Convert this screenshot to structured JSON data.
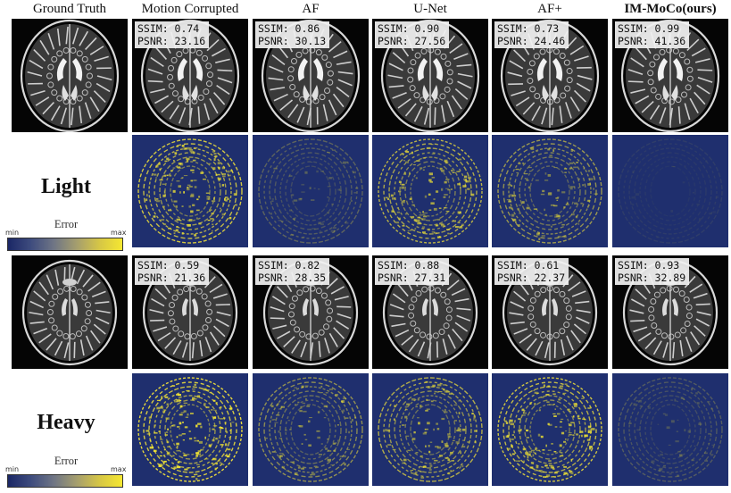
{
  "columns": [
    {
      "label": "Ground Truth",
      "bold": false
    },
    {
      "label": "Motion Corrupted",
      "bold": false
    },
    {
      "label": "AF",
      "bold": false
    },
    {
      "label": "U-Net",
      "bold": false
    },
    {
      "label": "AF+",
      "bold": false
    },
    {
      "label": "IM-MoCo(ours)",
      "bold": true
    }
  ],
  "rows": [
    {
      "label": "Light",
      "metrics": [
        null,
        {
          "ssim": "SSIM: 0.74",
          "psnr": "PSNR: 23.16"
        },
        {
          "ssim": "SSIM: 0.86",
          "psnr": "PSNR: 30.13"
        },
        {
          "ssim": "SSIM: 0.90",
          "psnr": "PSNR: 27.56"
        },
        {
          "ssim": "SSIM: 0.73",
          "psnr": "PSNR: 24.46"
        },
        {
          "ssim": "SSIM: 0.99",
          "psnr": "PSNR: 41.36"
        }
      ],
      "error_levels": [
        0.85,
        0.3,
        0.75,
        0.6,
        0.05
      ]
    },
    {
      "label": "Heavy",
      "metrics": [
        null,
        {
          "ssim": "SSIM: 0.59",
          "psnr": "PSNR: 21.36"
        },
        {
          "ssim": "SSIM: 0.82",
          "psnr": "PSNR: 28.35"
        },
        {
          "ssim": "SSIM: 0.88",
          "psnr": "PSNR: 27.31"
        },
        {
          "ssim": "SSIM: 0.61",
          "psnr": "PSNR: 22.37"
        },
        {
          "ssim": "SSIM: 0.93",
          "psnr": "PSNR: 32.89"
        }
      ],
      "error_levels": [
        0.95,
        0.55,
        0.7,
        0.85,
        0.25
      ]
    }
  ],
  "colorbar": {
    "title": "Error",
    "min": "min",
    "max": "max",
    "colors": [
      "#1b2766",
      "#f5e731"
    ]
  }
}
